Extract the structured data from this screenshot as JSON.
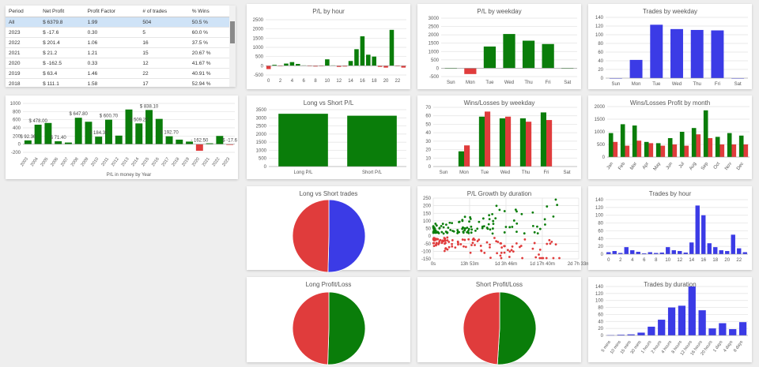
{
  "colors": {
    "green": "#0a7d0a",
    "red": "#e03c3c",
    "blue": "#3b3be6",
    "grid": "#e2e2e2",
    "axis": "#555555"
  },
  "table": {
    "headers": [
      "Period",
      "Net Profit",
      "Profit Factor",
      "# of trades",
      "% Wins"
    ],
    "rows": [
      [
        "All",
        "$ 6379.8",
        "1.99",
        "504",
        "50.5 %"
      ],
      [
        "2023",
        "$ -17.6",
        "0.30",
        "5",
        "60.0 %"
      ],
      [
        "2022",
        "$ 201.4",
        "1.06",
        "16",
        "37.5 %"
      ],
      [
        "2021",
        "$ 21.2",
        "1.21",
        "15",
        "20.67 %"
      ],
      [
        "2020",
        "$ -162.5",
        "0.33",
        "12",
        "41.67 %"
      ],
      [
        "2019",
        "$ 63.4",
        "1.46",
        "22",
        "40.91 %"
      ],
      [
        "2018",
        "$ 111.1",
        "1.58",
        "17",
        "52.94 %"
      ]
    ]
  },
  "chart_data": [
    {
      "id": "pl_by_hour",
      "type": "bar",
      "title": "P/L by hour",
      "categories": [
        "0",
        "1",
        "2",
        "3",
        "4",
        "5",
        "6",
        "7",
        "8",
        "9",
        "10",
        "11",
        "12",
        "13",
        "14",
        "15",
        "16",
        "17",
        "18",
        "19",
        "20",
        "21",
        "22",
        "23"
      ],
      "values": [
        -180,
        50,
        -20,
        120,
        200,
        100,
        20,
        -10,
        -40,
        -20,
        350,
        20,
        -60,
        -40,
        260,
        900,
        1600,
        600,
        500,
        -60,
        -100,
        1950,
        -20,
        -100
      ],
      "tick_labels": [
        "0",
        "2",
        "4",
        "6",
        "8",
        "10",
        "12",
        "14",
        "16",
        "18",
        "20",
        "22"
      ],
      "yticks": [
        -500,
        0,
        500,
        1000,
        1500,
        2000,
        2500
      ],
      "ylim": [
        -500,
        2500
      ]
    },
    {
      "id": "pl_by_weekday",
      "type": "bar",
      "title": "P/L by weekday",
      "categories": [
        "Sun",
        "Mon",
        "Tue",
        "Wed",
        "Thu",
        "Fri",
        "Sat"
      ],
      "values": [
        0,
        -350,
        1300,
        2050,
        1650,
        1450,
        0
      ],
      "yticks": [
        -500,
        0,
        500,
        1000,
        1500,
        2000,
        2500,
        3000
      ],
      "ylim": [
        -500,
        3000
      ]
    },
    {
      "id": "trades_by_weekday",
      "type": "bar",
      "title": "Trades by weekday",
      "categories": [
        "Sun",
        "Mon",
        "Tue",
        "Wed",
        "Thu",
        "Fri",
        "Sat"
      ],
      "values": [
        0,
        42,
        123,
        113,
        111,
        110,
        0
      ],
      "yticks": [
        0,
        20,
        40,
        60,
        80,
        100,
        120,
        140
      ],
      "ylim": [
        0,
        140
      ]
    },
    {
      "id": "pl_money_by_year",
      "type": "bar",
      "xlabel": "P/L in money by Year",
      "categories": [
        "2003",
        "2004",
        "2005",
        "2006",
        "2007",
        "2008",
        "2009",
        "2010",
        "2011",
        "2012",
        "2013",
        "2014",
        "2015",
        "2016",
        "2017",
        "2018",
        "2019",
        "2020",
        "2021",
        "2022",
        "2023"
      ],
      "values": [
        92.36,
        478,
        520,
        71.4,
        40,
        647.8,
        550,
        184.3,
        600.7,
        210,
        850,
        509.2,
        838.1,
        620,
        192.7,
        111.1,
        63.4,
        -162.5,
        21.2,
        201.4,
        -17.6
      ],
      "data_labels": {
        "0": "$ 92.36",
        "1": "$ 478.00",
        "3": "$ 71.40",
        "5": "$ 647.80",
        "7": "$ 184.30",
        "8": "$ 600.70",
        "11": "$ 509.20",
        "12": "$ 838.10",
        "14": "$ 192.70",
        "17": "- 162.50",
        "20": "$ -17.6"
      },
      "yticks": [
        -200,
        0,
        200,
        400,
        600,
        800,
        1000
      ],
      "ylim": [
        -200,
        1000
      ]
    },
    {
      "id": "long_vs_short_pl",
      "type": "bar",
      "title": "Long vs Short P/L",
      "categories": [
        "Long P/L",
        "Short P/L"
      ],
      "values": [
        3250,
        3130
      ],
      "yticks": [
        0,
        500,
        1000,
        1500,
        2000,
        2500,
        3000,
        3500
      ],
      "ylim": [
        0,
        3500
      ]
    },
    {
      "id": "wins_losses_by_weekday",
      "type": "bar",
      "title": "Wins/Losses by weekday",
      "categories": [
        "Sun",
        "Mon",
        "Tue",
        "Wed",
        "Thu",
        "Fri",
        "Sat"
      ],
      "series": [
        {
          "values": [
            0,
            18,
            59,
            57,
            57,
            64,
            0
          ]
        },
        {
          "values": [
            0,
            25,
            65,
            59,
            53,
            55,
            0
          ]
        }
      ],
      "yticks": [
        0,
        10,
        20,
        30,
        40,
        50,
        60,
        70
      ],
      "ylim": [
        0,
        70
      ]
    },
    {
      "id": "wins_losses_profit_by_month",
      "type": "bar",
      "title": "Wins/Losses Profit by month",
      "categories": [
        "Jan",
        "Feb",
        "Mar",
        "Apr",
        "May",
        "Jun",
        "Jul",
        "Aug",
        "Sep",
        "Oct",
        "Nov",
        "Dec"
      ],
      "series": [
        {
          "values": [
            950,
            1300,
            1250,
            600,
            550,
            750,
            1000,
            1150,
            1850,
            800,
            950,
            850
          ]
        },
        {
          "values": [
            600,
            450,
            650,
            550,
            450,
            500,
            450,
            900,
            750,
            500,
            500,
            500
          ]
        }
      ],
      "yticks": [
        0,
        500,
        1000,
        1500,
        2000
      ],
      "ylim": [
        0,
        2000
      ]
    },
    {
      "id": "long_vs_short_trades",
      "type": "pie",
      "title": "Long vs Short trades",
      "values": [
        254,
        250
      ],
      "colors": [
        "#3b3be6",
        "#e03c3c"
      ]
    },
    {
      "id": "pl_growth_by_duration",
      "type": "scatter",
      "title": "P/L Growth by duration",
      "xtick_labels": [
        "0s",
        "13h 53m",
        "1d 3h 46m",
        "1d 17h 40m",
        "2d 7h 33m"
      ],
      "yticks": [
        -150,
        -100,
        -50,
        0,
        50,
        100,
        150,
        200,
        250
      ],
      "ylim": [
        -150,
        250
      ],
      "xlim": [
        0,
        200000
      ],
      "xtick_values": [
        0,
        50000,
        100000,
        150000,
        200000
      ]
    },
    {
      "id": "trades_by_hour",
      "type": "bar",
      "title": "Trades by hour",
      "categories": [
        "0",
        "1",
        "2",
        "3",
        "4",
        "5",
        "6",
        "7",
        "8",
        "9",
        "10",
        "11",
        "12",
        "13",
        "14",
        "15",
        "16",
        "17",
        "18",
        "19",
        "20",
        "21",
        "22",
        "23"
      ],
      "values": [
        5,
        8,
        3,
        18,
        10,
        6,
        2,
        5,
        3,
        4,
        18,
        10,
        8,
        4,
        30,
        125,
        100,
        28,
        18,
        10,
        8,
        50,
        15,
        5
      ],
      "tick_labels": [
        "0",
        "2",
        "4",
        "6",
        "8",
        "10",
        "12",
        "14",
        "16",
        "18",
        "20",
        "22"
      ],
      "yticks": [
        0,
        20,
        40,
        60,
        80,
        100,
        120,
        140
      ],
      "ylim": [
        0,
        140
      ]
    },
    {
      "id": "long_profit_loss",
      "type": "pie",
      "title": "Long Profit/Loss",
      "values": [
        50.5,
        49.5
      ],
      "colors": [
        "#0a7d0a",
        "#e03c3c"
      ]
    },
    {
      "id": "short_profit_loss",
      "type": "pie",
      "title": "Short Profit/Loss",
      "values": [
        51,
        49
      ],
      "colors": [
        "#0a7d0a",
        "#e03c3c"
      ]
    },
    {
      "id": "trades_by_duration",
      "type": "bar",
      "title": "Trades by duration",
      "categories": [
        "5 mins",
        "10 mins",
        "15 mins",
        "30 mins",
        "1 hours",
        "2 hours",
        "4 hours",
        "8 hours",
        "12 hours",
        "16 hours",
        "20 hours",
        "1 days",
        "4 days",
        "8 days"
      ],
      "values": [
        1,
        2,
        3,
        8,
        25,
        45,
        80,
        85,
        140,
        72,
        20,
        35,
        18,
        38
      ],
      "yticks": [
        0,
        20,
        40,
        60,
        80,
        100,
        120,
        140
      ],
      "ylim": [
        0,
        140
      ]
    }
  ]
}
